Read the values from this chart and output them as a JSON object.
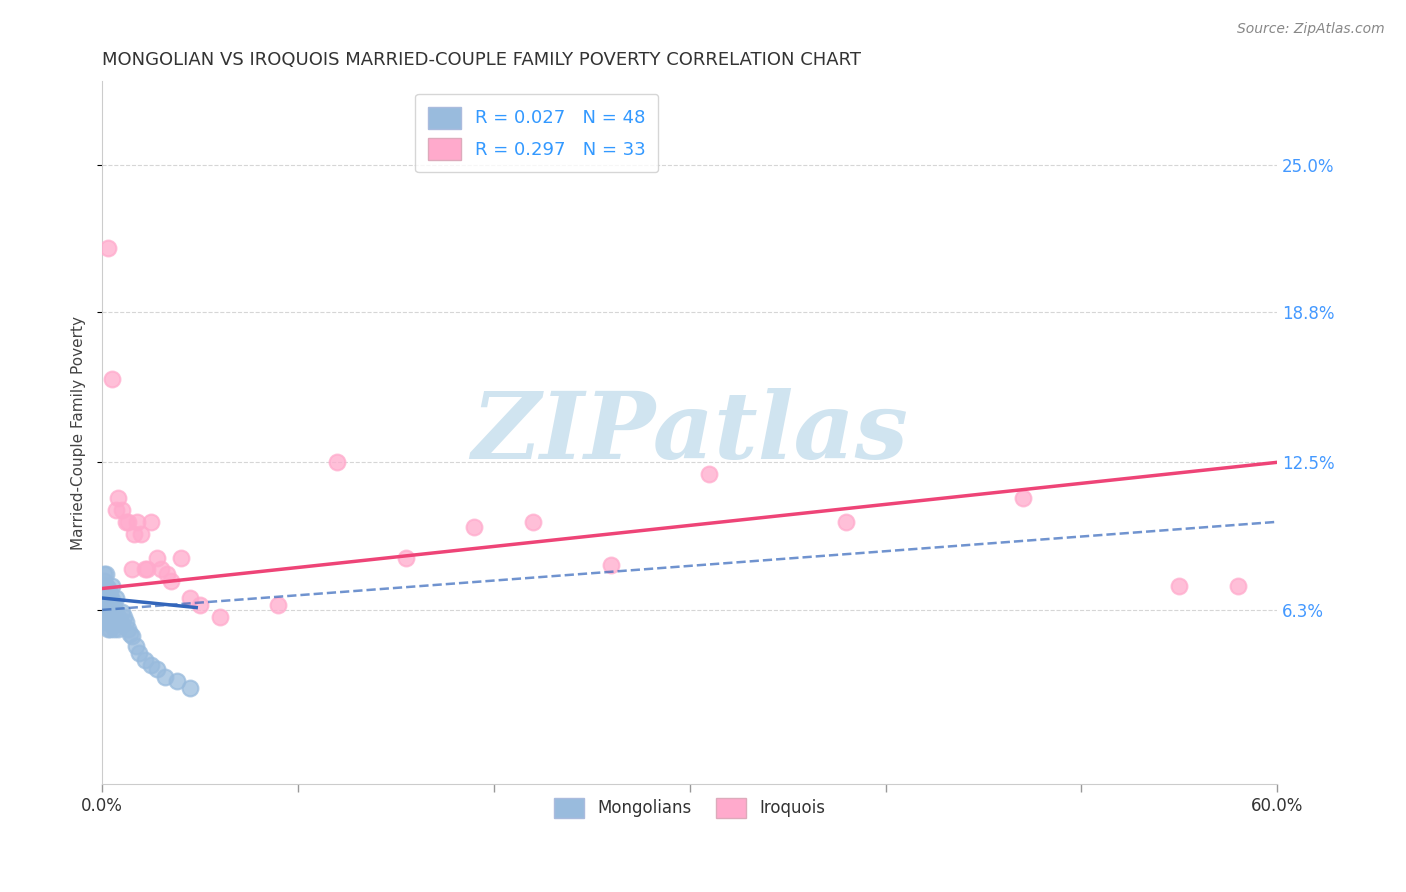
{
  "title": "MONGOLIAN VS IROQUOIS MARRIED-COUPLE FAMILY POVERTY CORRELATION CHART",
  "source": "Source: ZipAtlas.com",
  "ylabel": "Married-Couple Family Poverty",
  "xlim": [
    0.0,
    0.6
  ],
  "ylim": [
    -0.01,
    0.285
  ],
  "y_ticks": [
    0.063,
    0.125,
    0.188,
    0.25
  ],
  "y_tick_labels": [
    "6.3%",
    "12.5%",
    "18.8%",
    "25.0%"
  ],
  "x_minor_ticks": [
    0.0,
    0.1,
    0.2,
    0.3,
    0.4,
    0.5,
    0.6
  ],
  "mongolian_color": "#99bbdd",
  "iroquois_color": "#ffaacc",
  "mongolian_line_color": "#3366bb",
  "iroquois_line_color": "#ee4477",
  "mongolian_line_style": "-",
  "iroquois_line_style": "-",
  "background_color": "#ffffff",
  "watermark_text": "ZIPatlas",
  "watermark_color": "#d0e4f0",
  "grid_color": "#cccccc",
  "right_tick_color": "#4499ff",
  "mon_x": [
    0.001,
    0.001,
    0.001,
    0.001,
    0.002,
    0.002,
    0.002,
    0.002,
    0.002,
    0.003,
    0.003,
    0.003,
    0.003,
    0.003,
    0.003,
    0.004,
    0.004,
    0.004,
    0.004,
    0.004,
    0.005,
    0.005,
    0.005,
    0.005,
    0.006,
    0.006,
    0.006,
    0.007,
    0.007,
    0.007,
    0.008,
    0.008,
    0.009,
    0.01,
    0.01,
    0.011,
    0.012,
    0.013,
    0.014,
    0.015,
    0.017,
    0.019,
    0.022,
    0.025,
    0.028,
    0.032,
    0.038,
    0.045
  ],
  "mon_y": [
    0.068,
    0.072,
    0.075,
    0.078,
    0.058,
    0.063,
    0.068,
    0.073,
    0.078,
    0.055,
    0.06,
    0.064,
    0.068,
    0.072,
    0.058,
    0.055,
    0.06,
    0.065,
    0.07,
    0.062,
    0.057,
    0.062,
    0.067,
    0.073,
    0.055,
    0.06,
    0.065,
    0.057,
    0.062,
    0.068,
    0.055,
    0.06,
    0.058,
    0.057,
    0.062,
    0.06,
    0.058,
    0.055,
    0.053,
    0.052,
    0.048,
    0.045,
    0.042,
    0.04,
    0.038,
    0.035,
    0.033,
    0.03
  ],
  "iro_x": [
    0.003,
    0.005,
    0.007,
    0.008,
    0.01,
    0.012,
    0.013,
    0.015,
    0.016,
    0.018,
    0.02,
    0.022,
    0.023,
    0.025,
    0.028,
    0.03,
    0.033,
    0.035,
    0.04,
    0.045,
    0.05,
    0.06,
    0.09,
    0.12,
    0.155,
    0.19,
    0.22,
    0.26,
    0.31,
    0.38,
    0.47,
    0.55,
    0.58
  ],
  "iro_y": [
    0.215,
    0.16,
    0.105,
    0.11,
    0.105,
    0.1,
    0.1,
    0.08,
    0.095,
    0.1,
    0.095,
    0.08,
    0.08,
    0.1,
    0.085,
    0.08,
    0.078,
    0.075,
    0.085,
    0.068,
    0.065,
    0.06,
    0.065,
    0.125,
    0.085,
    0.098,
    0.1,
    0.082,
    0.12,
    0.1,
    0.11,
    0.073,
    0.073
  ],
  "mon_line_x0": 0.0,
  "mon_line_x1": 0.048,
  "mon_line_y0": 0.068,
  "mon_line_y1": 0.064,
  "iro_line_x0": 0.0,
  "iro_line_x1": 0.6,
  "iro_line_y0": 0.072,
  "iro_line_y1": 0.125,
  "dashed_line_x0": 0.0,
  "dashed_line_x1": 0.6,
  "dashed_line_y0": 0.063,
  "dashed_line_y1": 0.1
}
